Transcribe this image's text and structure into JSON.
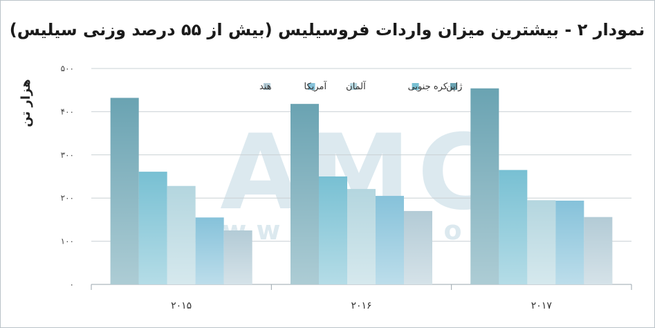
{
  "chart_data": {
    "type": "bar",
    "title": "نمودار ۲ - بیشترین میزان واردات فروسیلیس (بیش از ۵۵ درصد وزنی سیلیس)",
    "ylabel": "هزار تن",
    "ylim": [
      0,
      500
    ],
    "yticks": [
      "۰",
      "۱۰۰",
      "۲۰۰",
      "۳۰۰",
      "۴۰۰",
      "۵۰۰"
    ],
    "yticks_values": [
      0,
      100,
      200,
      300,
      400,
      500
    ],
    "categories": [
      "۲۰۱۵",
      "۲۰۱۶",
      "۲۰۱۷"
    ],
    "series": [
      {
        "name": "ژاپن",
        "color": "#6aa3b2",
        "values": [
          432,
          418,
          454
        ]
      },
      {
        "name": "کره جنوبی",
        "color": "#78c0d3",
        "values": [
          261,
          250,
          265
        ]
      },
      {
        "name": "آلمان",
        "color": "#b4d6df",
        "values": [
          228,
          221,
          195
        ]
      },
      {
        "name": "آمریکا",
        "color": "#86c2da",
        "values": [
          155,
          205,
          194
        ]
      },
      {
        "name": "هند",
        "color": "#b3cbd6",
        "values": [
          125,
          170,
          156
        ]
      }
    ],
    "grid": true,
    "legend_position": "top-right",
    "watermark": {
      "logo": "AMC",
      "url": "www.amc-co.ir"
    }
  }
}
